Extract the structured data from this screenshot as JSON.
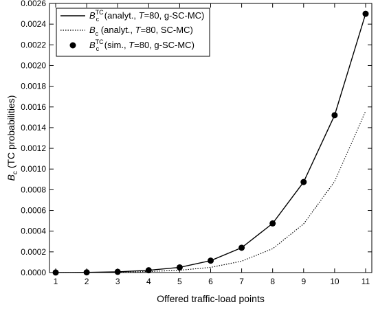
{
  "chart_data": {
    "type": "line",
    "xlabel": "Offered traffic-load points",
    "ylabel": {
      "main": "B",
      "sub": "c",
      "rest": " (TC probabilities)"
    },
    "xlim": [
      0.8,
      11.2
    ],
    "ylim": [
      0,
      0.0026
    ],
    "xticks": [
      1,
      2,
      3,
      4,
      5,
      6,
      7,
      8,
      9,
      10,
      11
    ],
    "yticks": [
      0,
      0.0002,
      0.0004,
      0.0006,
      0.0008,
      0.001,
      0.0012,
      0.0014,
      0.0016,
      0.0018,
      0.002,
      0.0022,
      0.0024,
      0.0026
    ],
    "ytick_labels": [
      "0.0000",
      "0.0002",
      "0.0004",
      "0.0006",
      "0.0008",
      "0.0010",
      "0.0012",
      "0.0014",
      "0.0016",
      "0.0018",
      "0.0020",
      "0.0022",
      "0.0024",
      "0.0026"
    ],
    "legend_position": "top-left",
    "x": [
      1,
      2,
      3,
      4,
      5,
      6,
      7,
      8,
      9,
      10,
      11
    ],
    "series": [
      {
        "style": "solid",
        "marker": "none",
        "color": "#000000",
        "legend": {
          "sym": "B",
          "sup": "TC",
          "sub": "c",
          "pre": " (analyt., ",
          "italic": "T",
          "post": "=80, g-SC-MC)"
        },
        "values": [
          5e-07,
          2e-06,
          7e-06,
          2.2e-05,
          5e-05,
          0.000115,
          0.00024,
          0.000475,
          0.000875,
          0.00152,
          0.0025
        ]
      },
      {
        "style": "dotted",
        "marker": "none",
        "color": "#000000",
        "legend": {
          "sym": "B",
          "sup": "",
          "sub": "c",
          "pre": " (analyt., ",
          "italic": "T",
          "post": "=80, SC-MC)"
        },
        "values": [
          2e-07,
          1e-06,
          4e-06,
          1e-05,
          2.2e-05,
          5e-05,
          0.00011,
          0.00023,
          0.00047,
          0.00088,
          0.00156
        ]
      },
      {
        "style": "none",
        "marker": "circle",
        "color": "#000000",
        "legend": {
          "sym": "B",
          "sup": "TC",
          "sub": "c",
          "pre": " (sim., ",
          "italic": "T",
          "post": "=80, g-SC-MC)"
        },
        "values": [
          5e-07,
          2e-06,
          7e-06,
          2.2e-05,
          5e-05,
          0.000115,
          0.00024,
          0.000475,
          0.000875,
          0.00152,
          0.0025
        ]
      }
    ]
  }
}
